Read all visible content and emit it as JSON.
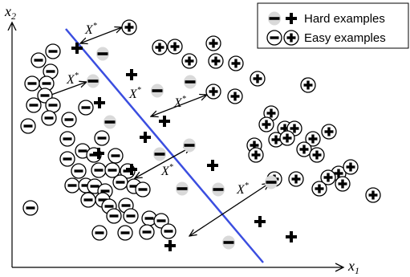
{
  "axes": {
    "x_label": "x",
    "x_sub": "1",
    "y_label": "x",
    "y_sub": "2"
  },
  "legend": {
    "hard_label": "Hard examples",
    "easy_label": "Easy examples"
  },
  "annotation": {
    "symbol": "X",
    "sup": "*"
  },
  "colors": {
    "boundary": "#3b4ee0",
    "hard_fill": "#d9d9d9",
    "ink": "#000000"
  },
  "icons": {
    "easy_minus": "circled-minus-icon",
    "easy_plus": "circled-plus-icon",
    "hard_minus": "gray-dot-minus-icon",
    "hard_plus": "bold-plus-icon"
  }
}
